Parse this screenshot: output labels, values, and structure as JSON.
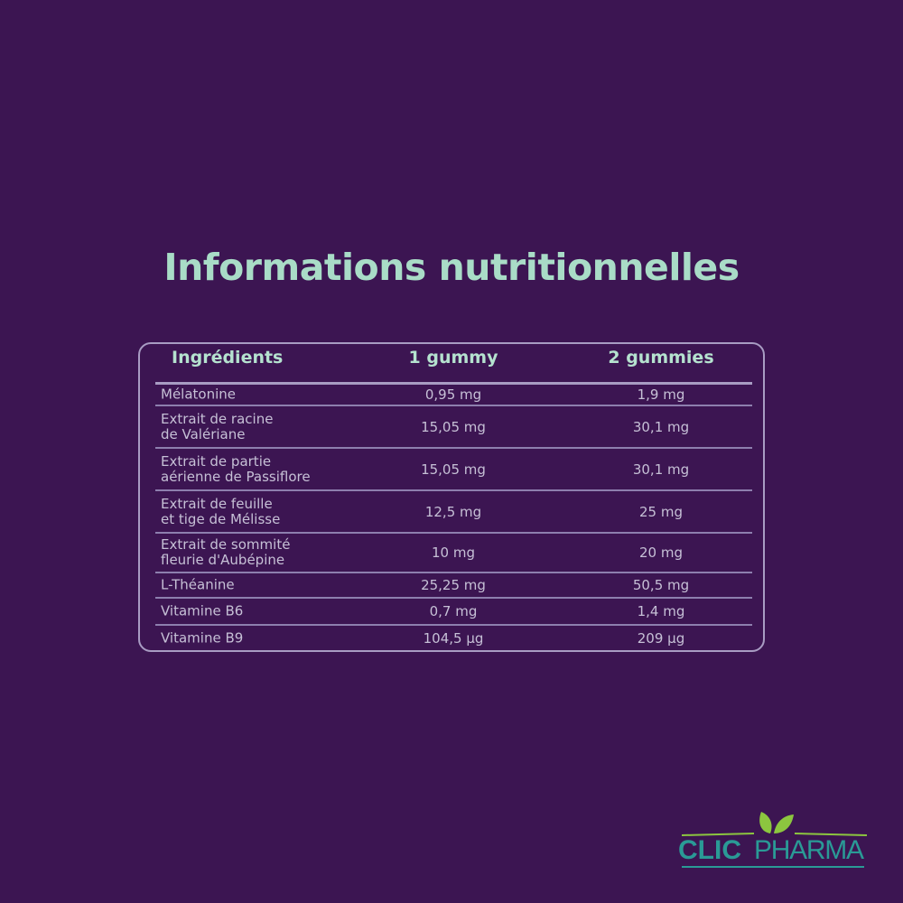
{
  "title": "Informations nutritionnelles",
  "table": {
    "headers": [
      "Ingrédients",
      "1 gummy",
      "2 gummies"
    ],
    "rows": [
      [
        "Mélatonine",
        "0,95 mg",
        "1,9 mg"
      ],
      [
        "Extrait de racine\nde Valériane",
        "15,05 mg",
        "30,1 mg"
      ],
      [
        "Extrait de partie\naérienne de Passiflore",
        "15,05 mg",
        "30,1 mg"
      ],
      [
        "Extrait de feuille\net tige de Mélisse",
        "12,5 mg",
        "25 mg"
      ],
      [
        "Extrait de sommité\nfleurie d'Aubépine",
        "10 mg",
        "20 mg"
      ],
      [
        "L-Théanine",
        "25,25 mg",
        "50,5 mg"
      ],
      [
        "Vitamine B6",
        "0,7 mg",
        "1,4 mg"
      ],
      [
        "Vitamine B9",
        "104,5 µg",
        "209 µg"
      ]
    ]
  },
  "logo": {
    "brand_part1": "CLIC",
    "brand_part2": "PHARMA",
    "icon": "leaves-icon"
  },
  "colors": {
    "background": "#3c1552",
    "accent": "#a9dcc7",
    "border": "#a89cc3",
    "logo_teal": "#2a9a96",
    "logo_green": "#8cc63f"
  }
}
